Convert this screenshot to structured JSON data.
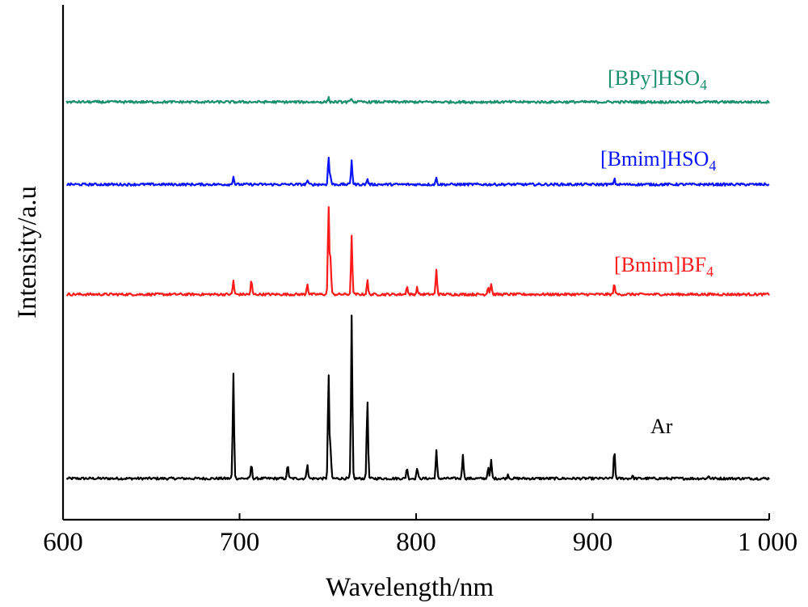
{
  "chart_data": {
    "type": "line",
    "title": "",
    "xlabel": "Wavelength/nm",
    "ylabel": "Intensity/a.u",
    "xlim": [
      600,
      1000
    ],
    "xticks": [
      600,
      700,
      800,
      900,
      1000
    ],
    "xtick_labels": [
      "600",
      "700",
      "800",
      "900",
      "1 000"
    ],
    "y_ticks_shown": false,
    "grid": false,
    "legend": "inline labels",
    "series": [
      {
        "name": "Ar",
        "label_main": "Ar",
        "label_sub": "",
        "color": "#000000",
        "baseline": 0,
        "peaks": [
          [
            696.5,
            38
          ],
          [
            706.7,
            5
          ],
          [
            727.3,
            5
          ],
          [
            738.4,
            5.5
          ],
          [
            750.4,
            38
          ],
          [
            751.5,
            11
          ],
          [
            763.5,
            59
          ],
          [
            772.4,
            29
          ],
          [
            794.8,
            4
          ],
          [
            800.6,
            4
          ],
          [
            811.5,
            10
          ],
          [
            826.5,
            9
          ],
          [
            840.8,
            4
          ],
          [
            842.5,
            6.5
          ],
          [
            852.1,
            1.5
          ],
          [
            912.3,
            10
          ],
          [
            922.5,
            1
          ],
          [
            965.8,
            1
          ]
        ]
      },
      {
        "name": "[Bmim]BF4",
        "label_main": "[Bmim]BF",
        "label_sub": "4",
        "color": "#ff1a1a",
        "baseline": 67,
        "peaks": [
          [
            696.5,
            5
          ],
          [
            706.7,
            5
          ],
          [
            738.4,
            4
          ],
          [
            750.4,
            32
          ],
          [
            751.5,
            13
          ],
          [
            763.5,
            21
          ],
          [
            772.4,
            5
          ],
          [
            794.8,
            3
          ],
          [
            800.6,
            2.5
          ],
          [
            811.5,
            9
          ],
          [
            840.8,
            3
          ],
          [
            842.5,
            4
          ],
          [
            912.3,
            4
          ]
        ]
      },
      {
        "name": "[Bmim]HSO4",
        "label_main": "[Bmim]HSO",
        "label_sub": "4",
        "color": "#0a14ff",
        "baseline": 107,
        "peaks": [
          [
            696.5,
            3
          ],
          [
            738.4,
            1.5
          ],
          [
            750.4,
            10
          ],
          [
            751.5,
            3
          ],
          [
            763.5,
            9
          ],
          [
            772.4,
            2
          ],
          [
            811.5,
            2.5
          ],
          [
            912.3,
            2
          ]
        ]
      },
      {
        "name": "[BPy]HSO4",
        "label_main": "[BPy]HSO",
        "label_sub": "4",
        "color": "#1a8f6e",
        "baseline": 137,
        "peaks": [
          [
            750.4,
            1.5
          ],
          [
            763.5,
            1.5
          ]
        ]
      }
    ]
  }
}
